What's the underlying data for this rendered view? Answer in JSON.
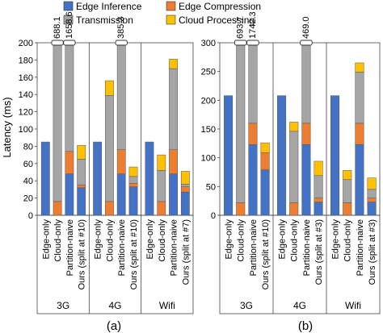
{
  "legend": {
    "placement": "top",
    "items": [
      {
        "name": "Edge Inference",
        "color": "#4472C4"
      },
      {
        "name": "Edge Compression",
        "color": "#ED7D31"
      },
      {
        "name": "Transmission",
        "color": "#A5A5A5"
      },
      {
        "name": "Cloud Processing",
        "color": "#FFC000"
      }
    ]
  },
  "chart_data": [
    {
      "type": "bar",
      "stacked": true,
      "panel_label": "(a)",
      "ylabel": "Latency (ms)",
      "ylim": [
        0,
        200
      ],
      "yticks": [
        0,
        20,
        40,
        60,
        80,
        100,
        120,
        140,
        160,
        180,
        200
      ],
      "grid": false,
      "groups": [
        {
          "name": "3G",
          "categories": [
            "Edge-only",
            "Cloud-only",
            "Partition-naive",
            "Ours (split at #10)"
          ]
        },
        {
          "name": "4G",
          "categories": [
            "Edge-only",
            "Cloud-only",
            "Partition-naive",
            "Ours (split at #10)"
          ]
        },
        {
          "name": "Wifi",
          "categories": [
            "Edge-only",
            "Cloud-only",
            "Partition-naive",
            "Ours (split at #7)"
          ]
        }
      ],
      "bars": [
        {
          "segments": [
            85,
            0,
            0,
            0
          ],
          "clipped_label": ""
        },
        {
          "segments": [
            0,
            16,
            672.1,
            0
          ],
          "clipped_label": "688.1"
        },
        {
          "segments": [
            48,
            26,
            1584.6,
            0
          ],
          "clipped_label": "1658.6"
        },
        {
          "segments": [
            32,
            3,
            30,
            16
          ],
          "clipped_label": ""
        },
        {
          "segments": [
            85,
            0,
            0,
            0
          ],
          "clipped_label": ""
        },
        {
          "segments": [
            0,
            16,
            123,
            17
          ],
          "clipped_label": ""
        },
        {
          "segments": [
            48,
            28,
            309.3,
            0
          ],
          "clipped_label": "385.3"
        },
        {
          "segments": [
            33,
            4,
            8,
            11
          ],
          "clipped_label": ""
        },
        {
          "segments": [
            85,
            0,
            0,
            0
          ],
          "clipped_label": ""
        },
        {
          "segments": [
            0,
            16,
            36,
            18
          ],
          "clipped_label": ""
        },
        {
          "segments": [
            48,
            28,
            94,
            11
          ],
          "clipped_label": ""
        },
        {
          "segments": [
            27,
            6,
            3,
            15
          ],
          "clipped_label": ""
        }
      ]
    },
    {
      "type": "bar",
      "stacked": true,
      "panel_label": "(b)",
      "ylabel": "",
      "ylim": [
        0,
        300
      ],
      "yticks": [
        0,
        50,
        100,
        150,
        200,
        250,
        300
      ],
      "grid": false,
      "groups": [
        {
          "name": "3G",
          "categories": [
            "Edge-only",
            "Cloud-only",
            "Partition-naive",
            "Ours (split at #10)"
          ]
        },
        {
          "name": "4G",
          "categories": [
            "Edge-only",
            "Cloud-only",
            "Partition-naive",
            "Ours (split at #3)"
          ]
        },
        {
          "name": "Wifi",
          "categories": [
            "Edge-only",
            "Cloud-only",
            "Partition-naive",
            "Ours (split at #3)"
          ]
        }
      ],
      "bars": [
        {
          "segments": [
            208,
            0,
            0,
            0
          ],
          "clipped_label": ""
        },
        {
          "segments": [
            0,
            22,
            671.7,
            0
          ],
          "clipped_label": "693.7"
        },
        {
          "segments": [
            123,
            37,
            1582.3,
            0
          ],
          "clipped_label": "1742.3"
        },
        {
          "segments": [
            79,
            30,
            0,
            17
          ],
          "clipped_label": ""
        },
        {
          "segments": [
            208,
            0,
            0,
            0
          ],
          "clipped_label": ""
        },
        {
          "segments": [
            0,
            22,
            124,
            16
          ],
          "clipped_label": ""
        },
        {
          "segments": [
            123,
            37,
            309,
            0
          ],
          "clipped_label": "469.0"
        },
        {
          "segments": [
            23,
            7,
            39,
            25
          ],
          "clipped_label": ""
        },
        {
          "segments": [
            208,
            0,
            0,
            0
          ],
          "clipped_label": ""
        },
        {
          "segments": [
            0,
            22,
            40,
            16
          ],
          "clipped_label": ""
        },
        {
          "segments": [
            123,
            37,
            89,
            16
          ],
          "clipped_label": ""
        },
        {
          "segments": [
            23,
            7,
            15,
            20
          ],
          "clipped_label": ""
        }
      ]
    }
  ]
}
